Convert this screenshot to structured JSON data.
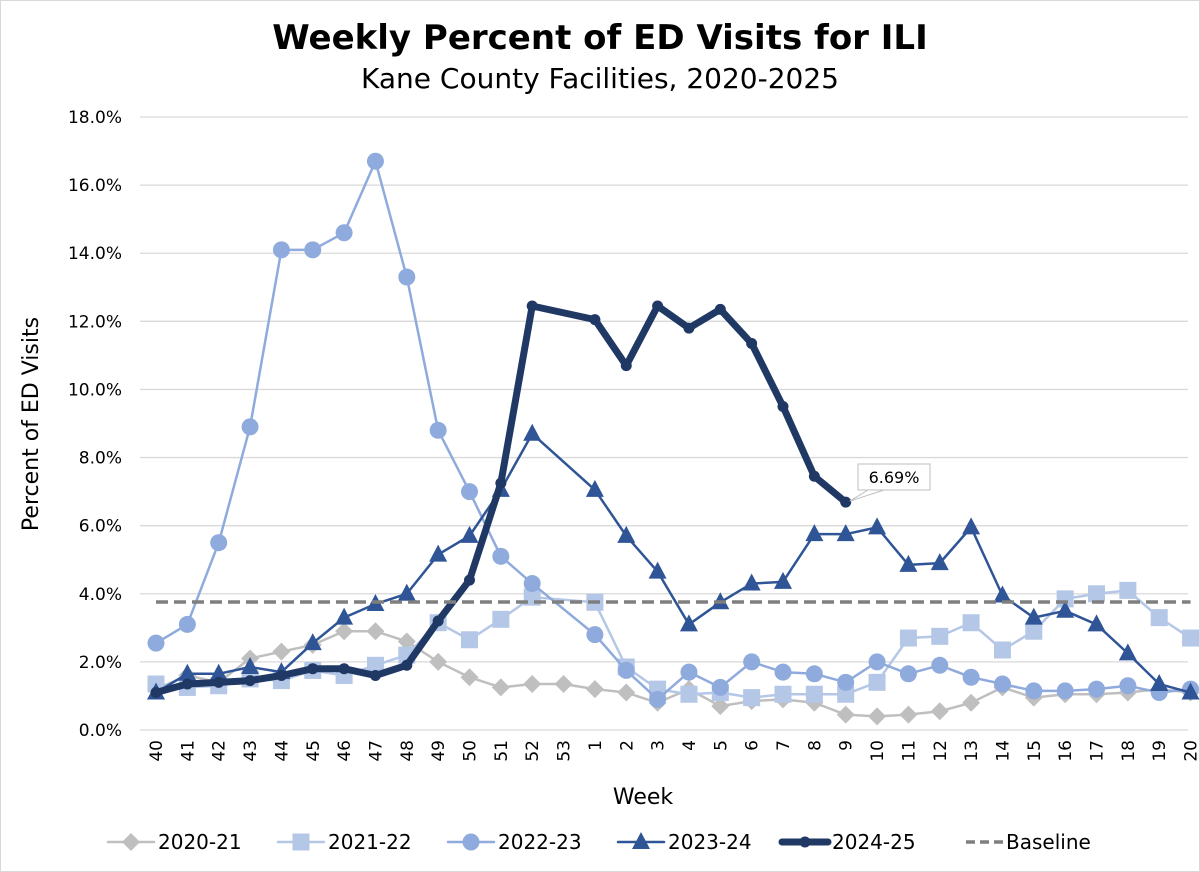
{
  "chart_data": {
    "type": "line",
    "title": "Weekly Percent of ED Visits for ILI",
    "subtitle": "Kane County Facilities, 2020-2025",
    "xlabel": "Week",
    "ylabel": "Percent of ED Visits",
    "ylim": [
      0,
      18
    ],
    "y_ticks": [
      "0.0%",
      "2.0%",
      "4.0%",
      "6.0%",
      "8.0%",
      "10.0%",
      "12.0%",
      "14.0%",
      "16.0%",
      "18.0%"
    ],
    "y_tick_values": [
      0,
      2,
      4,
      6,
      8,
      10,
      12,
      14,
      16,
      18
    ],
    "grid": true,
    "legend_position": "bottom",
    "categories": [
      "40",
      "41",
      "42",
      "43",
      "44",
      "45",
      "46",
      "47",
      "48",
      "49",
      "50",
      "51",
      "52",
      "53",
      "1",
      "2",
      "3",
      "4",
      "5",
      "6",
      "7",
      "8",
      "9",
      "10",
      "11",
      "12",
      "13",
      "14",
      "15",
      "16",
      "17",
      "18",
      "19",
      "20"
    ],
    "series": [
      {
        "name": "2020-21",
        "marker": "diamond",
        "color": "#bfbfbf",
        "values": [
          1.2,
          1.6,
          1.4,
          2.1,
          2.3,
          2.5,
          2.9,
          2.9,
          2.6,
          2.0,
          1.55,
          1.25,
          1.35,
          1.35,
          1.2,
          1.1,
          0.8,
          1.2,
          0.7,
          0.85,
          0.9,
          0.8,
          0.45,
          0.4,
          0.45,
          0.55,
          0.8,
          1.25,
          0.95,
          1.05,
          1.05,
          1.1,
          1.2,
          1.1
        ]
      },
      {
        "name": "2021-22",
        "marker": "square",
        "color": "#b4c7e7",
        "values": [
          1.35,
          1.25,
          1.3,
          1.5,
          1.45,
          1.75,
          1.6,
          1.9,
          2.2,
          3.15,
          2.65,
          3.25,
          3.9,
          null,
          3.75,
          1.85,
          1.2,
          1.05,
          1.1,
          0.95,
          1.05,
          1.05,
          1.05,
          1.4,
          2.7,
          2.75,
          3.15,
          2.35,
          2.9,
          3.85,
          4.0,
          4.1,
          3.3,
          2.7
        ]
      },
      {
        "name": "2022-23",
        "marker": "circle",
        "color": "#8faadc",
        "values": [
          2.55,
          3.1,
          5.5,
          8.9,
          14.1,
          14.1,
          14.6,
          16.7,
          13.3,
          8.8,
          7.0,
          5.1,
          4.3,
          null,
          2.8,
          1.75,
          0.9,
          1.7,
          1.25,
          2.0,
          1.7,
          1.65,
          1.4,
          2.0,
          1.65,
          1.9,
          1.55,
          1.35,
          1.15,
          1.15,
          1.2,
          1.3,
          1.1,
          1.2
        ]
      },
      {
        "name": "2023-24",
        "marker": "triangle",
        "color": "#2f5597",
        "values": [
          1.1,
          1.65,
          1.65,
          1.85,
          1.7,
          2.55,
          3.3,
          3.7,
          4.0,
          5.15,
          5.7,
          7.05,
          8.7,
          null,
          7.05,
          5.7,
          4.65,
          3.1,
          3.75,
          4.3,
          4.35,
          5.75,
          5.75,
          5.95,
          4.85,
          4.9,
          5.95,
          3.95,
          3.3,
          3.5,
          3.1,
          2.25,
          1.35,
          1.1
        ]
      },
      {
        "name": "2024-25",
        "marker": "circle-small",
        "color": "#203864",
        "values": [
          1.1,
          1.35,
          1.4,
          1.45,
          1.6,
          1.8,
          1.8,
          1.6,
          1.9,
          3.2,
          4.4,
          7.25,
          12.45,
          null,
          12.05,
          10.7,
          12.45,
          11.8,
          12.35,
          11.35,
          9.5,
          7.45,
          6.69,
          null,
          null,
          null,
          null,
          null,
          null,
          null,
          null,
          null,
          null,
          null
        ]
      },
      {
        "name": "Baseline",
        "marker": "none",
        "color": "#7f7f7f",
        "dashed": true,
        "values": [
          3.76,
          3.76,
          3.76,
          3.76,
          3.76,
          3.76,
          3.76,
          3.76,
          3.76,
          3.76,
          3.76,
          3.76,
          3.76,
          3.76,
          3.76,
          3.76,
          3.76,
          3.76,
          3.76,
          3.76,
          3.76,
          3.76,
          3.76,
          3.76,
          3.76,
          3.76,
          3.76,
          3.76,
          3.76,
          3.76,
          3.76,
          3.76,
          3.76,
          3.76
        ]
      }
    ],
    "annotations": [
      {
        "series": "2024-25",
        "category": "9",
        "text": "6.69%"
      }
    ]
  }
}
